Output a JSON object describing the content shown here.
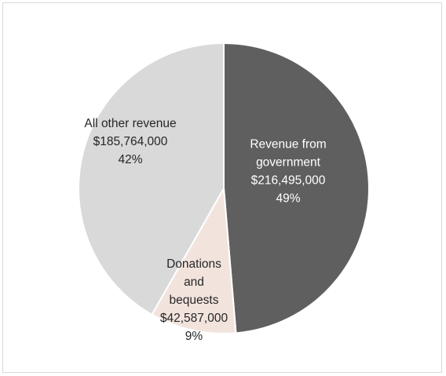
{
  "chart_data": {
    "type": "pie",
    "title": "",
    "slices": [
      {
        "name": "Revenue from government",
        "value": 216495000,
        "percent": 49,
        "label_lines": [
          "Revenue from",
          "government",
          "$216,495,000",
          "49%"
        ],
        "color": "#5f5f5f",
        "text_color": "#ffffff"
      },
      {
        "name": "Donations and bequests",
        "value": 42587000,
        "percent": 9,
        "label_lines": [
          "Donations",
          "and",
          "bequests",
          "$42,587,000",
          "9%"
        ],
        "color": "#f2e4dd",
        "text_color": "#262626"
      },
      {
        "name": "All other revenue",
        "value": 185764000,
        "percent": 42,
        "label_lines": [
          "All other revenue",
          "$185,764,000",
          "42%"
        ],
        "color": "#d9d9d9",
        "text_color": "#262626"
      }
    ],
    "start_angle_deg": 0,
    "direction": "clockwise",
    "legend": "none",
    "slice_border_color": "#ffffff"
  }
}
